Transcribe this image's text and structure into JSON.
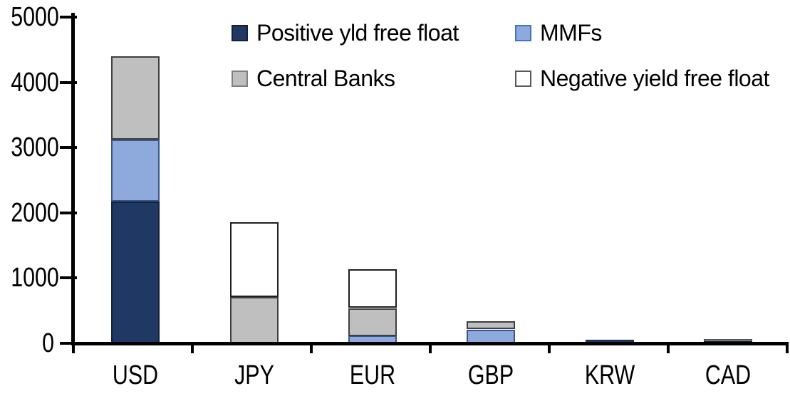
{
  "page": {
    "background": "#FFFFFF"
  },
  "chart_data": {
    "type": "bar",
    "stacked": true,
    "title": "",
    "xlabel": "",
    "ylabel": "",
    "categories": [
      "USD",
      "JPY",
      "EUR",
      "GBP",
      "KRW",
      "CAD"
    ],
    "series": [
      {
        "name": "Positive yld free float",
        "color": "#1F3864",
        "border_color": "#14213A",
        "legend_border_color": "#14213A",
        "values": [
          2170,
          0,
          0,
          0,
          60,
          35
        ]
      },
      {
        "name": "MMFs",
        "color": "#8EA9DB",
        "border_color": "#3A5588",
        "legend_border_color": "#4472C4",
        "values": [
          950,
          0,
          115,
          210,
          0,
          0
        ]
      },
      {
        "name": "Central Banks",
        "color": "#BFBFBF",
        "border_color": "#404040",
        "legend_border_color": "#7F7F7F",
        "values": [
          1280,
          710,
          425,
          125,
          0,
          35
        ]
      },
      {
        "name": "Negative yield free float",
        "color": "#FFFFFF",
        "border_color": "#1F1F1F",
        "legend_border_color": "#595959",
        "values": [
          0,
          1150,
          590,
          0,
          0,
          0
        ]
      }
    ],
    "ylim": [
      0,
      5000
    ],
    "yticks": [
      0,
      1000,
      2000,
      3000,
      4000,
      5000
    ],
    "grid": false,
    "legend_position": "top-inside",
    "legend_columns": 2,
    "axis_color": "#000000",
    "text_color": "#000000"
  }
}
